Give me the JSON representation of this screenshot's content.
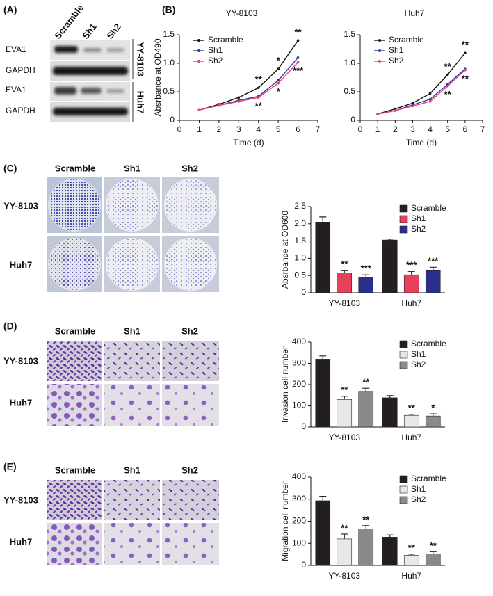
{
  "panels": {
    "labels": [
      "(A)",
      "(B)",
      "(C)",
      "(D)",
      "(E)"
    ]
  },
  "blot": {
    "columns": [
      "Scramble",
      "Sh1",
      "Sh2"
    ],
    "rows": [
      "EVA1",
      "GAPDH",
      "EVA1",
      "GAPDH"
    ],
    "cell_lines": [
      "YY-8103",
      "Huh7"
    ]
  },
  "images_c": {
    "columns": [
      "Scramble",
      "Sh1",
      "Sh2"
    ],
    "rows": [
      "YY-8103",
      "Huh7"
    ]
  },
  "images_d": {
    "columns": [
      "Scramble",
      "Sh1",
      "Sh2"
    ],
    "rows": [
      "YY-8103",
      "Huh7"
    ]
  },
  "images_e": {
    "columns": [
      "Scramble",
      "Sh1",
      "Sh2"
    ],
    "rows": [
      "YY-8103",
      "Huh7"
    ]
  },
  "chart_data": [
    {
      "type": "line",
      "title": "YY-8103",
      "x_label": "Time (d)",
      "y_label": "Absrbance at OD490",
      "x": [
        1,
        2,
        3,
        4,
        5,
        6
      ],
      "xlim": [
        0,
        7
      ],
      "xticks": [
        0,
        1,
        2,
        3,
        4,
        5,
        6,
        7
      ],
      "ylim": [
        0,
        1.5
      ],
      "yticks": [
        0,
        0.5,
        {
          "value": 1,
          "label": "1.0"
        },
        1.5
      ],
      "legend": "upper left",
      "series": [
        {
          "name": "Scramble",
          "color": "#111111",
          "values": [
            0.18,
            0.28,
            0.4,
            0.57,
            0.9,
            1.4
          ],
          "labels": [
            null,
            null,
            null,
            "**",
            "*",
            "**"
          ]
        },
        {
          "name": "Sh1",
          "color": "#2b3a9e",
          "values": [
            0.18,
            0.26,
            0.35,
            0.42,
            0.7,
            1.1
          ]
        },
        {
          "name": "Sh2",
          "color": "#e8407a",
          "values": [
            0.18,
            0.26,
            0.33,
            0.4,
            0.65,
            1.02
          ],
          "labels": [
            null,
            null,
            null,
            "**",
            "*",
            "***"
          ]
        }
      ]
    },
    {
      "type": "line",
      "title": "Huh7",
      "x_label": "Time (d)",
      "x": [
        1,
        2,
        3,
        4,
        5,
        6
      ],
      "xlim": [
        0,
        7
      ],
      "xticks": [
        0,
        1,
        2,
        3,
        4,
        5,
        6,
        7
      ],
      "ylim": [
        0,
        1.5
      ],
      "yticks": [
        0,
        0.5,
        {
          "value": 1,
          "label": "1.0"
        },
        1.5
      ],
      "legend": "upper left",
      "series": [
        {
          "name": "Scramble",
          "color": "#111111",
          "values": [
            0.11,
            0.2,
            0.3,
            0.47,
            0.8,
            1.18
          ],
          "labels": [
            null,
            null,
            null,
            null,
            "**",
            "**"
          ]
        },
        {
          "name": "Sh1",
          "color": "#2b3a9e",
          "values": [
            0.11,
            0.17,
            0.27,
            0.37,
            0.63,
            0.9
          ]
        },
        {
          "name": "Sh2",
          "color": "#e8407a",
          "values": [
            0.11,
            0.17,
            0.25,
            0.33,
            0.6,
            0.88
          ],
          "labels": [
            null,
            null,
            null,
            null,
            "**",
            "**"
          ]
        }
      ]
    },
    {
      "type": "bar",
      "y_label": "Absrbance at OD600",
      "categories": [
        "YY-8103",
        "Huh7"
      ],
      "ylim": [
        0,
        2.5
      ],
      "yticks": [
        0,
        0.5,
        {
          "value": 1,
          "label": "1.0"
        },
        1.5,
        {
          "value": 2,
          "label": "2.0"
        },
        2.5
      ],
      "legend": "upper right",
      "series": [
        {
          "name": "Scramble",
          "color": "#231f20",
          "values": [
            2.05,
            1.53
          ],
          "errors": [
            0.15,
            0.03
          ]
        },
        {
          "name": "Sh1",
          "color": "#e8405a",
          "values": [
            0.57,
            0.52
          ],
          "errors": [
            0.08,
            0.1
          ],
          "labels": [
            "**",
            "***"
          ]
        },
        {
          "name": "Sh2",
          "color": "#2b2e8c",
          "values": [
            0.45,
            0.66
          ],
          "errors": [
            0.07,
            0.08
          ],
          "labels": [
            "***",
            "***"
          ]
        }
      ]
    },
    {
      "type": "bar",
      "y_label": "Invasion cell number",
      "categories": [
        "YY-8103",
        "Huh7"
      ],
      "ylim": [
        0,
        400
      ],
      "yticks": [
        0,
        100,
        200,
        300,
        400
      ],
      "legend": "upper right",
      "series": [
        {
          "name": "Scramble",
          "color": "#231f20",
          "values": [
            320,
            138
          ],
          "errors": [
            15,
            10
          ]
        },
        {
          "name": "Sh1",
          "color": "#e8e8e8",
          "values": [
            130,
            55
          ],
          "errors": [
            15,
            5
          ],
          "labels": [
            "**",
            "**"
          ]
        },
        {
          "name": "Sh2",
          "color": "#8a8a8a",
          "values": [
            168,
            52
          ],
          "errors": [
            15,
            10
          ],
          "labels": [
            "**",
            "*"
          ]
        }
      ]
    },
    {
      "type": "bar",
      "y_label": "Migration cell number",
      "categories": [
        "YY-8103",
        "Huh7"
      ],
      "ylim": [
        0,
        400
      ],
      "yticks": [
        0,
        100,
        200,
        300,
        400
      ],
      "legend": "upper right",
      "series": [
        {
          "name": "Scramble",
          "color": "#231f20",
          "values": [
            293,
            128
          ],
          "errors": [
            20,
            10
          ]
        },
        {
          "name": "Sh1",
          "color": "#e8e8e8",
          "values": [
            120,
            46
          ],
          "errors": [
            22,
            5
          ],
          "labels": [
            "**",
            "**"
          ]
        },
        {
          "name": "Sh2",
          "color": "#8a8a8a",
          "values": [
            165,
            52
          ],
          "errors": [
            15,
            10
          ],
          "labels": [
            "**",
            "**"
          ]
        }
      ]
    }
  ]
}
